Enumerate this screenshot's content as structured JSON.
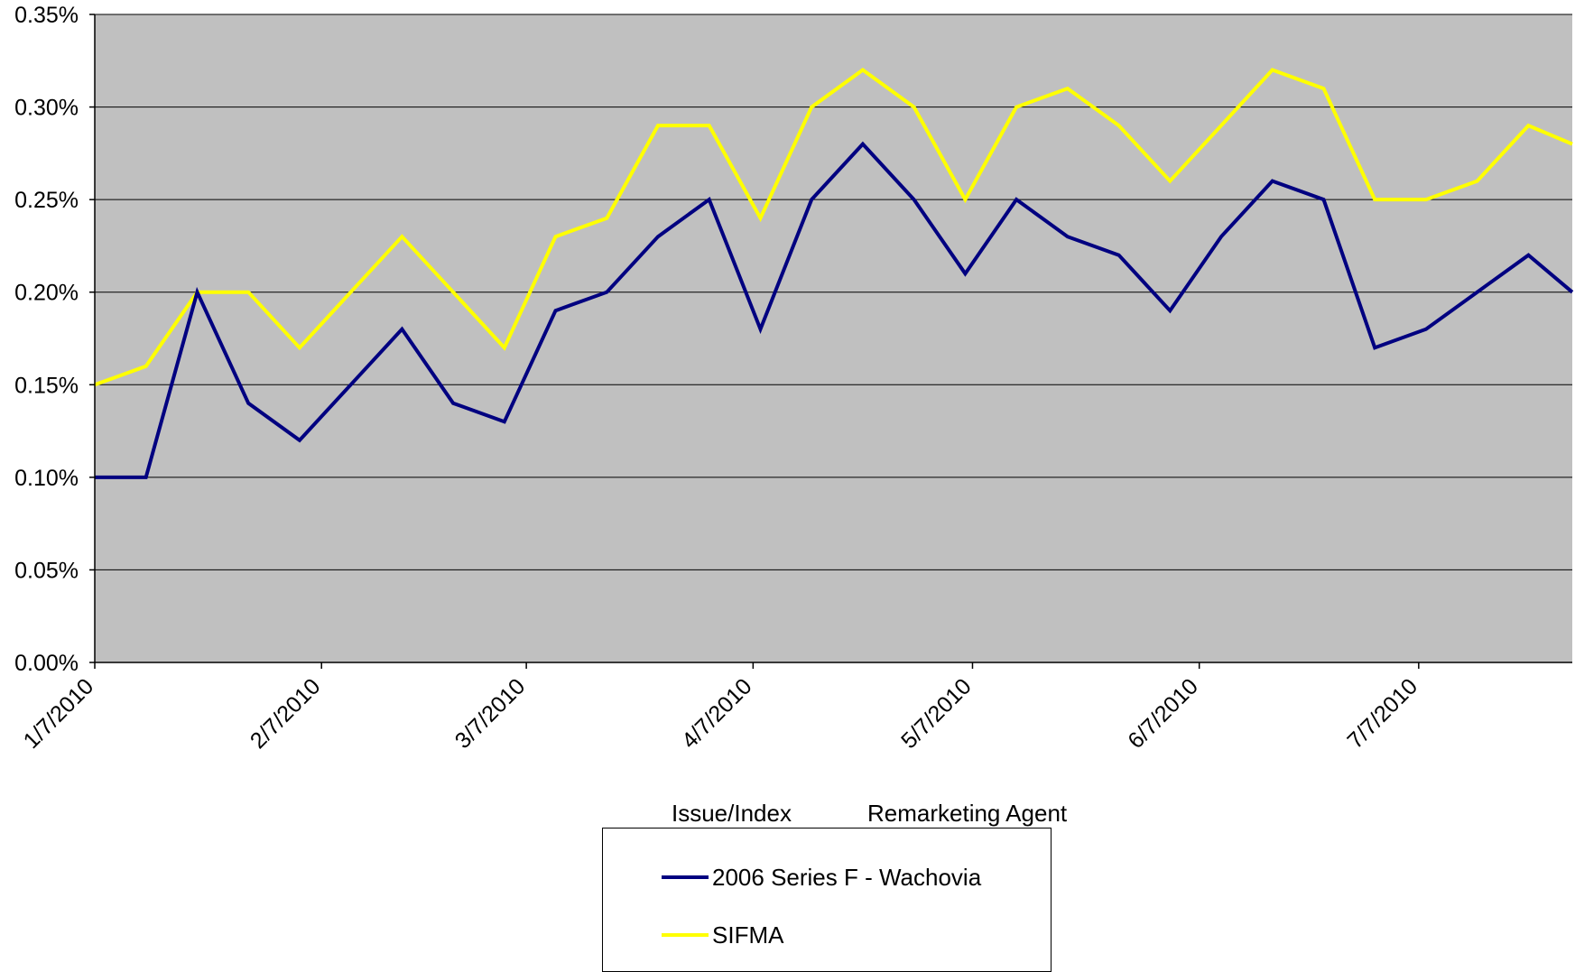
{
  "chart_data": {
    "type": "line",
    "title": "",
    "xlabel": "",
    "ylabel": "",
    "ylim": [
      0,
      0.35
    ],
    "y_ticks": [
      "0.00%",
      "0.05%",
      "0.10%",
      "0.15%",
      "0.20%",
      "0.25%",
      "0.30%",
      "0.35%"
    ],
    "y_tick_values": [
      0,
      0.05,
      0.1,
      0.15,
      0.2,
      0.25,
      0.3,
      0.35
    ],
    "x_tick_labels": [
      "1/7/2010",
      "2/7/2010",
      "3/7/2010",
      "4/7/2010",
      "5/7/2010",
      "6/7/2010",
      "7/7/2010"
    ],
    "x_range": [
      "2010-01-07",
      "2010-07-28"
    ],
    "x": [
      "2010-01-07",
      "2010-01-14",
      "2010-01-21",
      "2010-01-28",
      "2010-02-04",
      "2010-02-11",
      "2010-02-18",
      "2010-02-25",
      "2010-03-04",
      "2010-03-11",
      "2010-03-18",
      "2010-03-25",
      "2010-04-01",
      "2010-04-08",
      "2010-04-15",
      "2010-04-22",
      "2010-04-29",
      "2010-05-06",
      "2010-05-13",
      "2010-05-20",
      "2010-05-27",
      "2010-06-03",
      "2010-06-10",
      "2010-06-17",
      "2010-06-24",
      "2010-07-01",
      "2010-07-08",
      "2010-07-15",
      "2010-07-22",
      "2010-07-28"
    ],
    "series": [
      {
        "name": "2006 Series F - Wachovia",
        "color": "#000080",
        "values": [
          0.1,
          0.1,
          0.2,
          0.14,
          0.12,
          0.15,
          0.18,
          0.14,
          0.13,
          0.19,
          0.2,
          0.23,
          0.25,
          0.18,
          0.25,
          0.28,
          0.25,
          0.21,
          0.25,
          0.23,
          0.22,
          0.19,
          0.23,
          0.26,
          0.25,
          0.17,
          0.18,
          0.2,
          0.22,
          0.2
        ]
      },
      {
        "name": "SIFMA",
        "color": "#FFFF00",
        "values": [
          0.15,
          0.16,
          0.2,
          0.2,
          0.17,
          0.2,
          0.23,
          0.2,
          0.17,
          0.23,
          0.24,
          0.29,
          0.29,
          0.24,
          0.3,
          0.32,
          0.3,
          0.25,
          0.3,
          0.31,
          0.29,
          0.26,
          0.29,
          0.32,
          0.31,
          0.25,
          0.25,
          0.26,
          0.29,
          0.28
        ]
      }
    ],
    "plot_background": "#C0C0C0",
    "grid": true,
    "legend_position": "bottom-center",
    "legend_headers": [
      "Issue/Index",
      "Remarketing Agent"
    ]
  }
}
